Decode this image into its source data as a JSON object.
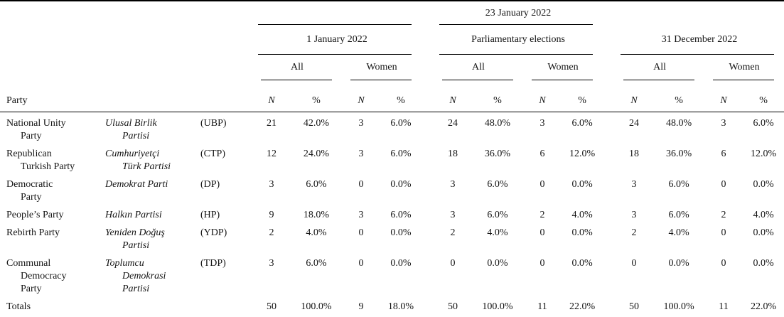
{
  "page": {
    "background": "#ffffff",
    "rule_color": "#000000"
  },
  "table": {
    "election_date_header": "23 January 2022",
    "groups": [
      {
        "label": "1 January 2022"
      },
      {
        "label": "Parliamentary elections"
      },
      {
        "label": "31 December 2022"
      }
    ],
    "subgroup_labels": {
      "all": "All",
      "women": "Women"
    },
    "metric_labels": {
      "n": "N",
      "pct": "%"
    },
    "party_column_header": "Party",
    "rows": [
      {
        "name_en": [
          "National Unity",
          "Party"
        ],
        "name_tr": [
          "Ulusal Birlik",
          "Partisi"
        ],
        "abbr": "(UBP)",
        "values": [
          "21",
          "42.0%",
          "3",
          "6.0%",
          "24",
          "48.0%",
          "3",
          "6.0%",
          "24",
          "48.0%",
          "3",
          "6.0%"
        ]
      },
      {
        "name_en": [
          "Republican",
          "Turkish Party"
        ],
        "name_tr": [
          "Cumhuriyetçi",
          "Türk Partisi"
        ],
        "abbr": "(CTP)",
        "values": [
          "12",
          "24.0%",
          "3",
          "6.0%",
          "18",
          "36.0%",
          "6",
          "12.0%",
          "18",
          "36.0%",
          "6",
          "12.0%"
        ]
      },
      {
        "name_en": [
          "Democratic",
          "Party"
        ],
        "name_tr": [
          "Demokrat Parti"
        ],
        "abbr": "(DP)",
        "values": [
          "3",
          "6.0%",
          "0",
          "0.0%",
          "3",
          "6.0%",
          "0",
          "0.0%",
          "3",
          "6.0%",
          "0",
          "0.0%"
        ]
      },
      {
        "name_en": [
          "People’s Party"
        ],
        "name_tr": [
          "Halkın Partisi"
        ],
        "abbr": "(HP)",
        "values": [
          "9",
          "18.0%",
          "3",
          "6.0%",
          "3",
          "6.0%",
          "2",
          "4.0%",
          "3",
          "6.0%",
          "2",
          "4.0%"
        ]
      },
      {
        "name_en": [
          "Rebirth Party"
        ],
        "name_tr": [
          "Yeniden Doğuş",
          "Partisi"
        ],
        "abbr": "(YDP)",
        "values": [
          "2",
          "4.0%",
          "0",
          "0.0%",
          "2",
          "4.0%",
          "0",
          "0.0%",
          "2",
          "4.0%",
          "0",
          "0.0%"
        ]
      },
      {
        "name_en": [
          "Communal",
          "Democracy",
          "Party"
        ],
        "name_tr": [
          "Toplumcu",
          "Demokrasi",
          "Partisi"
        ],
        "abbr": "(TDP)",
        "values": [
          "3",
          "6.0%",
          "0",
          "0.0%",
          "0",
          "0.0%",
          "0",
          "0.0%",
          "0",
          "0.0%",
          "0",
          "0.0%"
        ]
      }
    ],
    "totals": {
      "label": "Totals",
      "values": [
        "50",
        "100.0%",
        "9",
        "18.0%",
        "50",
        "100.0%",
        "11",
        "22.0%",
        "50",
        "100.0%",
        "11",
        "22.0%"
      ]
    },
    "column_keys": [
      "jan1-all-n",
      "jan1-all-pct",
      "jan1-women-n",
      "jan1-women-pct",
      "elections-all-n",
      "elections-all-pct",
      "elections-women-n",
      "elections-women-pct",
      "dec31-all-n",
      "dec31-all-pct",
      "dec31-women-n",
      "dec31-women-pct"
    ]
  }
}
